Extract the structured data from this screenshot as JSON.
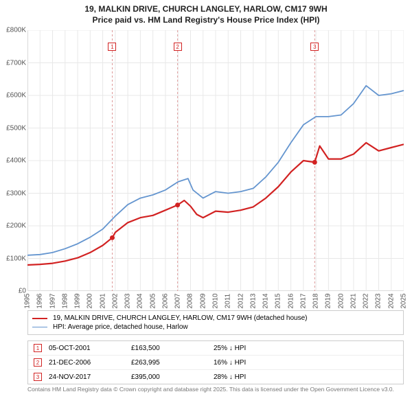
{
  "title_line1": "19, MALKIN DRIVE, CHURCH LANGLEY, HARLOW, CM17 9WH",
  "title_line2": "Price paid vs. HM Land Registry's House Price Index (HPI)",
  "chart": {
    "type": "line",
    "background_color": "#ffffff",
    "border_color": "#cccccc",
    "grid_color": "#e8e8e8",
    "xlim": [
      1995,
      2025
    ],
    "ylim": [
      0,
      800000
    ],
    "ytick_step": 100000,
    "yticks": [
      "£0",
      "£100K",
      "£200K",
      "£300K",
      "£400K",
      "£500K",
      "£600K",
      "£700K",
      "£800K"
    ],
    "xticks": [
      "1995",
      "1996",
      "1997",
      "1998",
      "1999",
      "2000",
      "2001",
      "2002",
      "2003",
      "2004",
      "2005",
      "2006",
      "2007",
      "2008",
      "2009",
      "2010",
      "2011",
      "2012",
      "2013",
      "2014",
      "2015",
      "2016",
      "2017",
      "2018",
      "2019",
      "2020",
      "2021",
      "2022",
      "2023",
      "2024",
      "2025"
    ],
    "series": [
      {
        "name": "hpi",
        "color": "#6495cf",
        "width": 1.8,
        "points": [
          [
            1995,
            110000
          ],
          [
            1996,
            112000
          ],
          [
            1997,
            118000
          ],
          [
            1998,
            130000
          ],
          [
            1999,
            145000
          ],
          [
            2000,
            165000
          ],
          [
            2001,
            190000
          ],
          [
            2002,
            230000
          ],
          [
            2003,
            265000
          ],
          [
            2004,
            285000
          ],
          [
            2005,
            295000
          ],
          [
            2006,
            310000
          ],
          [
            2007,
            335000
          ],
          [
            2007.8,
            345000
          ],
          [
            2008.2,
            310000
          ],
          [
            2009,
            285000
          ],
          [
            2010,
            305000
          ],
          [
            2011,
            300000
          ],
          [
            2012,
            305000
          ],
          [
            2013,
            315000
          ],
          [
            2014,
            350000
          ],
          [
            2015,
            395000
          ],
          [
            2016,
            455000
          ],
          [
            2017,
            510000
          ],
          [
            2018,
            535000
          ],
          [
            2019,
            535000
          ],
          [
            2020,
            540000
          ],
          [
            2021,
            575000
          ],
          [
            2022,
            630000
          ],
          [
            2023,
            600000
          ],
          [
            2024,
            605000
          ],
          [
            2025,
            615000
          ]
        ]
      },
      {
        "name": "price_paid",
        "color": "#d22222",
        "width": 2.2,
        "points": [
          [
            1995,
            80000
          ],
          [
            1996,
            82000
          ],
          [
            1997,
            85000
          ],
          [
            1998,
            92000
          ],
          [
            1999,
            102000
          ],
          [
            2000,
            118000
          ],
          [
            2001,
            140000
          ],
          [
            2001.76,
            163500
          ],
          [
            2002,
            180000
          ],
          [
            2003,
            210000
          ],
          [
            2004,
            225000
          ],
          [
            2005,
            232000
          ],
          [
            2006,
            248000
          ],
          [
            2006.97,
            263995
          ],
          [
            2007.5,
            278000
          ],
          [
            2008,
            260000
          ],
          [
            2008.5,
            235000
          ],
          [
            2009,
            225000
          ],
          [
            2010,
            245000
          ],
          [
            2011,
            242000
          ],
          [
            2012,
            248000
          ],
          [
            2013,
            258000
          ],
          [
            2014,
            285000
          ],
          [
            2015,
            320000
          ],
          [
            2016,
            365000
          ],
          [
            2017,
            400000
          ],
          [
            2017.9,
            395000
          ],
          [
            2018.3,
            445000
          ],
          [
            2019,
            405000
          ],
          [
            2020,
            405000
          ],
          [
            2021,
            420000
          ],
          [
            2022,
            455000
          ],
          [
            2023,
            430000
          ],
          [
            2024,
            440000
          ],
          [
            2025,
            450000
          ]
        ]
      }
    ],
    "sale_markers": [
      {
        "x": 2001.76,
        "y": 163500,
        "color": "#d22222"
      },
      {
        "x": 2006.97,
        "y": 263995,
        "color": "#d22222"
      },
      {
        "x": 2017.9,
        "y": 395000,
        "color": "#d22222"
      }
    ],
    "annotations": [
      {
        "n": "1",
        "x": 2001.76,
        "line_color": "#d99",
        "border_color": "#d22222",
        "text_color": "#d22222"
      },
      {
        "n": "2",
        "x": 2006.97,
        "line_color": "#d99",
        "border_color": "#d22222",
        "text_color": "#d22222"
      },
      {
        "n": "3",
        "x": 2017.9,
        "line_color": "#d99",
        "border_color": "#d22222",
        "text_color": "#d22222"
      }
    ]
  },
  "legend": {
    "items": [
      {
        "color": "#d22222",
        "width": 2.2,
        "label": "19, MALKIN DRIVE, CHURCH LANGLEY, HARLOW, CM17 9WH (detached house)"
      },
      {
        "color": "#6495cf",
        "width": 1.8,
        "label": "HPI: Average price, detached house, Harlow"
      }
    ]
  },
  "transactions": [
    {
      "n": "1",
      "date": "05-OCT-2001",
      "price": "£163,500",
      "hpi": "25% ↓ HPI",
      "border_color": "#d22222",
      "text_color": "#d22222"
    },
    {
      "n": "2",
      "date": "21-DEC-2006",
      "price": "£263,995",
      "hpi": "16% ↓ HPI",
      "border_color": "#d22222",
      "text_color": "#d22222"
    },
    {
      "n": "3",
      "date": "24-NOV-2017",
      "price": "£395,000",
      "hpi": "28% ↓ HPI",
      "border_color": "#d22222",
      "text_color": "#d22222"
    }
  ],
  "attribution": "Contains HM Land Registry data © Crown copyright and database right 2025. This data is licensed under the Open Government Licence v3.0."
}
